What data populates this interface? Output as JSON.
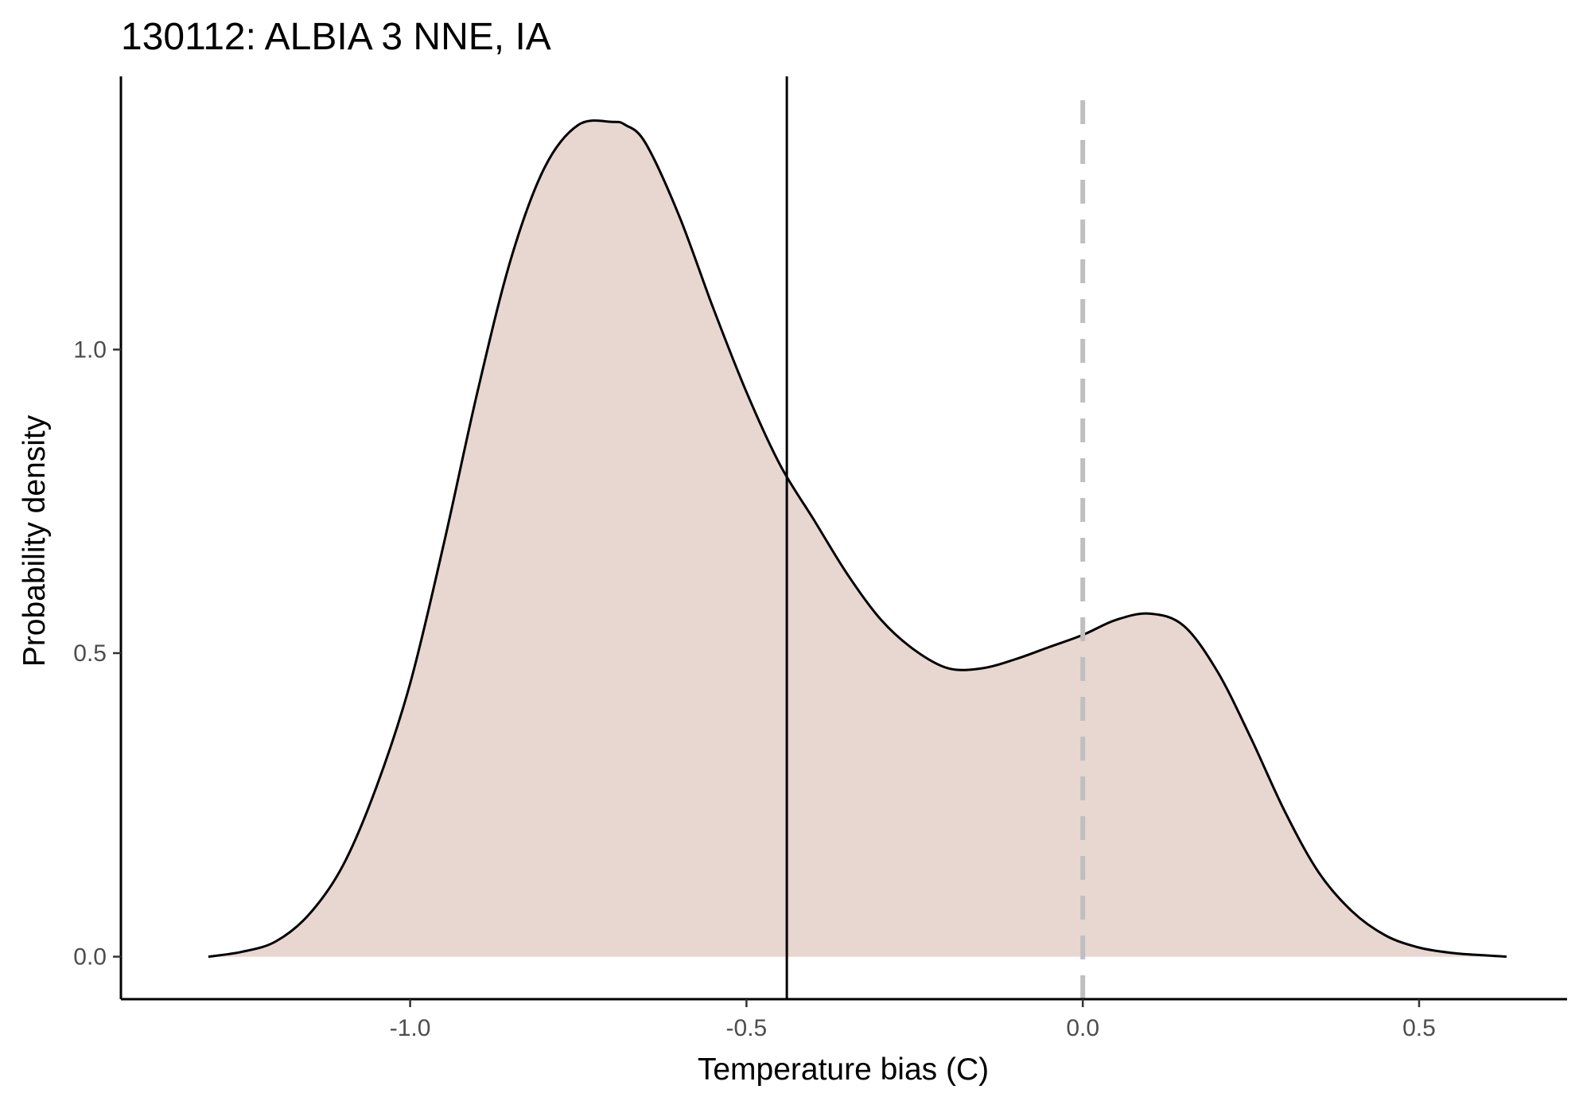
{
  "chart_data": {
    "type": "area",
    "title": "130112: ALBIA 3 NNE, IA",
    "xlabel": "Temperature bias (C)",
    "ylabel": "Probability density",
    "xlim": [
      -1.43,
      0.72
    ],
    "ylim": [
      -0.07,
      1.45
    ],
    "x_ticks": [
      -1.0,
      -0.5,
      0.0,
      0.5
    ],
    "x_tick_labels": [
      "-1.0",
      "-0.5",
      "0.0",
      "0.5"
    ],
    "y_ticks": [
      0.0,
      0.5,
      1.0
    ],
    "y_tick_labels": [
      "0.0",
      "0.5",
      "1.0"
    ],
    "grid": false,
    "legend": "none",
    "fill_color": "#e8d6d1",
    "line_color": "#000000",
    "series": [
      {
        "x": [
          -1.3,
          -1.25,
          -1.2,
          -1.15,
          -1.1,
          -1.05,
          -1.0,
          -0.95,
          -0.9,
          -0.85,
          -0.8,
          -0.75,
          -0.7,
          -0.68,
          -0.65,
          -0.6,
          -0.55,
          -0.5,
          -0.45,
          -0.4,
          -0.35,
          -0.3,
          -0.25,
          -0.2,
          -0.15,
          -0.1,
          -0.05,
          0.0,
          0.05,
          0.1,
          0.15,
          0.2,
          0.25,
          0.3,
          0.35,
          0.4,
          0.45,
          0.5,
          0.55,
          0.6,
          0.63
        ],
        "values": [
          0.0,
          0.008,
          0.025,
          0.07,
          0.15,
          0.28,
          0.45,
          0.68,
          0.93,
          1.15,
          1.3,
          1.37,
          1.375,
          1.37,
          1.34,
          1.22,
          1.07,
          0.93,
          0.81,
          0.72,
          0.63,
          0.555,
          0.505,
          0.475,
          0.475,
          0.49,
          0.51,
          0.53,
          0.555,
          0.565,
          0.545,
          0.47,
          0.36,
          0.24,
          0.14,
          0.075,
          0.035,
          0.015,
          0.006,
          0.002,
          0.0
        ]
      }
    ],
    "vlines": [
      {
        "x": -0.44,
        "style": "solid",
        "color": "#000000"
      },
      {
        "x": 0.0,
        "style": "dashed",
        "color": "#bfbfbf"
      }
    ]
  }
}
